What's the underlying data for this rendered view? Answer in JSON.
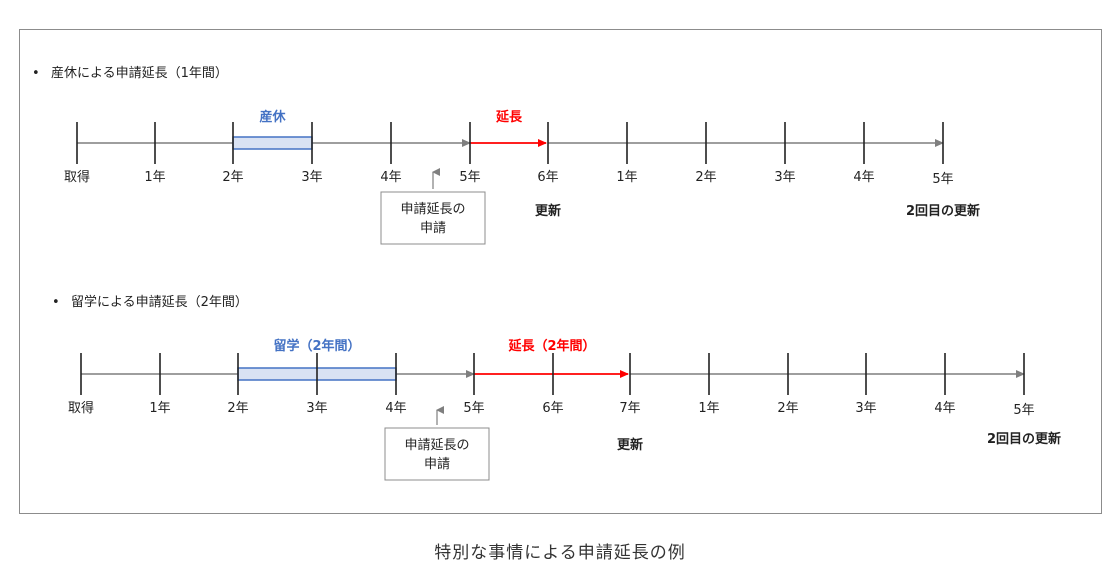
{
  "caption": "特別な事情による申請延長の例",
  "colors": {
    "line": "#7f7f7f",
    "tick": "#222222",
    "blue": "#4472c4",
    "blue_fill": "#d9e2f3",
    "red": "#ff0000"
  },
  "timeline1": {
    "heading": "産休による申請延長（1年間）",
    "ticks": [
      "取得",
      "1年",
      "2年",
      "3年",
      "4年",
      "5年",
      "6年",
      "1年",
      "2年",
      "3年",
      "4年",
      "5年"
    ],
    "highlight_label": "産休",
    "extension_label": "延長",
    "note": "申請延長の\n申請",
    "renewal": "更新",
    "second_renewal": "2回目の更新"
  },
  "timeline2": {
    "heading": "留学による申請延長（2年間）",
    "ticks": [
      "取得",
      "1年",
      "2年",
      "3年",
      "4年",
      "5年",
      "6年",
      "7年",
      "1年",
      "2年",
      "3年",
      "4年",
      "5年"
    ],
    "highlight_label": "留学（2年間）",
    "extension_label": "延長（2年間）",
    "note": "申請延長の\n申請",
    "renewal": "更新",
    "second_renewal": "2回目の更新"
  }
}
